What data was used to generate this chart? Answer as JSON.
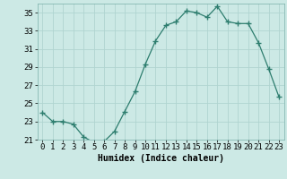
{
  "x": [
    0,
    1,
    2,
    3,
    4,
    5,
    6,
    7,
    8,
    9,
    10,
    11,
    12,
    13,
    14,
    15,
    16,
    17,
    18,
    19,
    20,
    21,
    22,
    23
  ],
  "y": [
    24.0,
    23.0,
    23.0,
    22.7,
    21.3,
    20.7,
    20.8,
    21.9,
    24.1,
    26.3,
    29.3,
    31.9,
    33.6,
    34.0,
    35.2,
    35.0,
    34.5,
    35.7,
    34.0,
    33.8,
    33.8,
    31.7,
    28.8,
    25.7
  ],
  "line_color": "#2d7d6e",
  "marker": "+",
  "marker_size": 4,
  "bg_color": "#cce9e5",
  "grid_color": "#b0d4d0",
  "xlabel": "Humidex (Indice chaleur)",
  "ylim": [
    21,
    36
  ],
  "xlim": [
    -0.5,
    23.5
  ],
  "yticks": [
    21,
    23,
    25,
    27,
    29,
    31,
    33,
    35
  ],
  "xticks": [
    0,
    1,
    2,
    3,
    4,
    5,
    6,
    7,
    8,
    9,
    10,
    11,
    12,
    13,
    14,
    15,
    16,
    17,
    18,
    19,
    20,
    21,
    22,
    23
  ],
  "label_fontsize": 7,
  "tick_fontsize": 6.5
}
